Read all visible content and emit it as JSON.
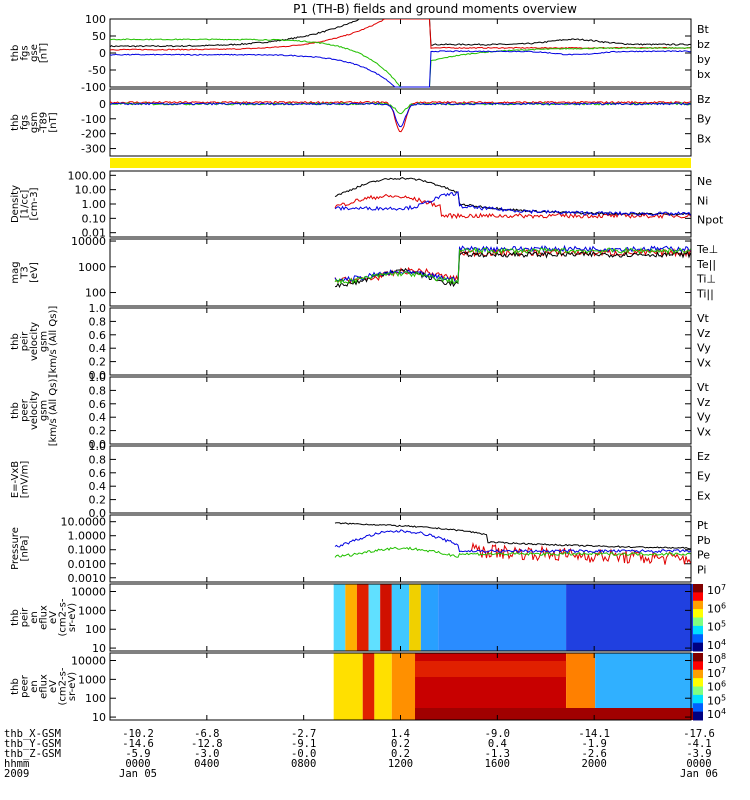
{
  "title": "P1 (TH-B) fields and ground moments overview",
  "colors": {
    "black": "#000000",
    "red": "#e00000",
    "green": "#22c000",
    "blue": "#0000e0",
    "yellow": "#ffee00"
  },
  "chart_data": [
    {
      "id": "fgs_gse",
      "type": "line",
      "ylabel": [
        "thb",
        "fgs",
        "gse",
        "[nT]"
      ],
      "ylim": [
        -100,
        100
      ],
      "yticks": [
        {
          "v": 100,
          "l": "100"
        },
        {
          "v": 50,
          "l": "50"
        },
        {
          "v": 0,
          "l": "0"
        },
        {
          "v": -50,
          "l": "-50"
        },
        {
          "v": -100,
          "l": "-100"
        }
      ],
      "legend": [
        {
          "label": "Bt",
          "color": "black"
        },
        {
          "label": "bz",
          "color": "red"
        },
        {
          "label": "by",
          "color": "green"
        },
        {
          "label": "bx",
          "color": "blue"
        }
      ]
    },
    {
      "id": "fgs_gsm",
      "type": "line",
      "ylabel": [
        "thb",
        "fgs",
        "gsm",
        "-T89",
        "[nT]"
      ],
      "ylim": [
        -350,
        100
      ],
      "yticks": [
        {
          "v": 0,
          "l": "0"
        },
        {
          "v": -100,
          "l": "-100"
        },
        {
          "v": -200,
          "l": "-200"
        },
        {
          "v": -300,
          "l": "-300"
        }
      ],
      "legend": [
        {
          "label": "Bz",
          "color": "red"
        },
        {
          "label": "By",
          "color": "green"
        },
        {
          "label": "Bx",
          "color": "blue"
        }
      ]
    },
    {
      "id": "flag",
      "type": "bar",
      "ylabel": [],
      "yticks": [],
      "legend": []
    },
    {
      "id": "density",
      "type": "line",
      "log": true,
      "ylabel": [
        "Density",
        "[1/cc]",
        "[cm-3]"
      ],
      "ylim": [
        0.005,
        200
      ],
      "yticks": [
        {
          "v": 100,
          "l": "100.00"
        },
        {
          "v": 10,
          "l": "10.00"
        },
        {
          "v": 1,
          "l": "1.00"
        },
        {
          "v": 0.1,
          "l": "0.10"
        },
        {
          "v": 0.01,
          "l": "0.01"
        }
      ],
      "legend": [
        {
          "label": "Ne",
          "color": "red"
        },
        {
          "label": "Ni",
          "color": "black"
        },
        {
          "label": "Npot",
          "color": "blue"
        }
      ]
    },
    {
      "id": "temp",
      "type": "line",
      "log": true,
      "ylabel": [
        "mag",
        "T3",
        "[eV]"
      ],
      "ylim": [
        30,
        12000
      ],
      "yticks": [
        {
          "v": 10000,
          "l": "10000"
        },
        {
          "v": 1000,
          "l": "1000"
        },
        {
          "v": 100,
          "l": "100"
        }
      ],
      "legend": [
        {
          "label": "Te⊥",
          "color": "red"
        },
        {
          "label": "Te||",
          "color": "black"
        },
        {
          "label": "Ti⊥",
          "color": "blue"
        },
        {
          "label": "Ti||",
          "color": "green"
        }
      ]
    },
    {
      "id": "peir_vel",
      "type": "line",
      "ylabel": [
        "thb",
        "peir",
        "velocity",
        "gsm",
        "[km/s (All Qs)]"
      ],
      "ylim": [
        0,
        1
      ],
      "yticks": [
        {
          "v": 1,
          "l": "1.0"
        },
        {
          "v": 0.8,
          "l": "0.8"
        },
        {
          "v": 0.6,
          "l": "0.6"
        },
        {
          "v": 0.4,
          "l": "0.4"
        },
        {
          "v": 0.2,
          "l": "0.2"
        },
        {
          "v": 0,
          "l": "0.0"
        }
      ],
      "legend": [
        {
          "label": "Vt",
          "color": "black"
        },
        {
          "label": "Vz",
          "color": "red"
        },
        {
          "label": "Vy",
          "color": "green"
        },
        {
          "label": "Vx",
          "color": "blue"
        }
      ]
    },
    {
      "id": "peer_vel",
      "type": "line",
      "ylabel": [
        "thb",
        "peer",
        "velocity",
        "gsm",
        "[km/s (All Qs)]"
      ],
      "ylim": [
        0,
        1
      ],
      "yticks": [
        {
          "v": 1,
          "l": "1.0"
        },
        {
          "v": 0.8,
          "l": "0.8"
        },
        {
          "v": 0.6,
          "l": "0.6"
        },
        {
          "v": 0.4,
          "l": "0.4"
        },
        {
          "v": 0.2,
          "l": "0.2"
        },
        {
          "v": 0,
          "l": "0.0"
        }
      ],
      "legend": [
        {
          "label": "Vt",
          "color": "black"
        },
        {
          "label": "Vz",
          "color": "red"
        },
        {
          "label": "Vy",
          "color": "green"
        },
        {
          "label": "Vx",
          "color": "blue"
        }
      ]
    },
    {
      "id": "efield",
      "type": "line",
      "ylabel": [
        "E=-VxB",
        "[mV/m]"
      ],
      "ylim": [
        0,
        1
      ],
      "yticks": [
        {
          "v": 1,
          "l": "1.0"
        },
        {
          "v": 0.8,
          "l": "0.8"
        },
        {
          "v": 0.6,
          "l": "0.6"
        },
        {
          "v": 0.4,
          "l": "0.4"
        },
        {
          "v": 0.2,
          "l": "0.2"
        },
        {
          "v": 0,
          "l": "0.0"
        }
      ],
      "legend": [
        {
          "label": "Ez",
          "color": "red"
        },
        {
          "label": "Ey",
          "color": "green"
        },
        {
          "label": "Ex",
          "color": "blue"
        }
      ]
    },
    {
      "id": "pressure",
      "type": "line",
      "log": true,
      "ylabel": [
        "Pressure",
        "[nPa]"
      ],
      "ylim": [
        0.0005,
        30
      ],
      "yticks": [
        {
          "v": 10,
          "l": "10.0000"
        },
        {
          "v": 1,
          "l": "1.0000"
        },
        {
          "v": 0.1,
          "l": "0.1000"
        },
        {
          "v": 0.01,
          "l": "0.0100"
        },
        {
          "v": 0.001,
          "l": "0.0010"
        }
      ],
      "legend": [
        {
          "label": "Pt",
          "color": "black"
        },
        {
          "label": "Pb",
          "color": "red"
        },
        {
          "label": "Pe",
          "color": "green"
        },
        {
          "label": "Pi",
          "color": "blue"
        }
      ]
    },
    {
      "id": "peir_spec",
      "type": "heatmap",
      "log": true,
      "ylabel": [
        "thb",
        "peir",
        "en",
        "eflux",
        "eV",
        "(cm2-s-",
        "sr-eV)"
      ],
      "ylim": [
        7,
        25000
      ],
      "yticks": [
        {
          "v": 10000,
          "l": "10000"
        },
        {
          "v": 1000,
          "l": "1000"
        },
        {
          "v": 100,
          "l": "100"
        },
        {
          "v": 10,
          "l": "10"
        }
      ],
      "colorbar": [
        "10^7",
        "10^6",
        "10^5",
        "10^4"
      ],
      "legend": []
    },
    {
      "id": "peer_spec",
      "type": "heatmap",
      "log": true,
      "ylabel": [
        "thb",
        "peer",
        "en",
        "eflux",
        "eV",
        "(cm2-s-",
        "sr-eV)"
      ],
      "ylim": [
        7,
        25000
      ],
      "yticks": [
        {
          "v": 10000,
          "l": "10000"
        },
        {
          "v": 1000,
          "l": "1000"
        },
        {
          "v": 100,
          "l": "100"
        },
        {
          "v": 10,
          "l": "10"
        }
      ],
      "colorbar": [
        "10^8",
        "10^7",
        "10^6",
        "10^5",
        "10^4"
      ],
      "legend": []
    }
  ],
  "footer": {
    "rows": [
      {
        "label": "thb_X-GSM",
        "values": [
          "-10.2",
          "-6.8",
          "-2.7",
          "1.4",
          "-9.0",
          "-14.1",
          "-17.6"
        ]
      },
      {
        "label": "thb_Y-GSM",
        "values": [
          "-14.6",
          "-12.8",
          "-9.1",
          "0.2",
          "0.4",
          "-1.9",
          "-4.1"
        ]
      },
      {
        "label": "thb_Z-GSM",
        "values": [
          "-5.9",
          "-3.0",
          "-0.0",
          "0.2",
          "-1.3",
          "-2.6",
          "-3.9"
        ]
      },
      {
        "label": "hhmm",
        "values": [
          "0000",
          "0400",
          "0800",
          "1200",
          "1600",
          "2000",
          "0000"
        ]
      },
      {
        "label": "2009",
        "values": [
          "Jan 05",
          "",
          "",
          "",
          "",
          "",
          "Jan 06"
        ]
      }
    ]
  }
}
